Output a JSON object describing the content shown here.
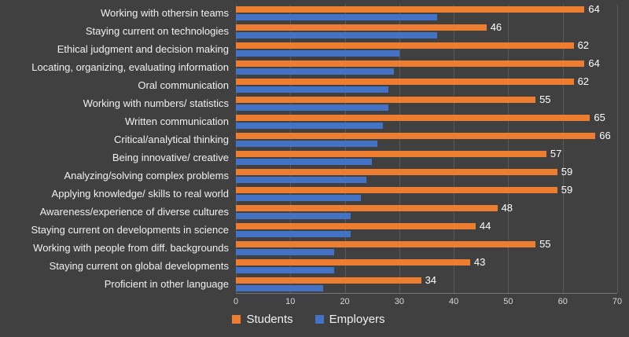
{
  "chart_data": {
    "type": "bar",
    "orientation": "horizontal",
    "title": "",
    "xlabel": "",
    "ylabel": "",
    "xlim": [
      0,
      70
    ],
    "x_ticks": [
      0,
      10,
      20,
      30,
      40,
      50,
      60,
      70
    ],
    "grid": true,
    "legend_position": "bottom",
    "background_color": "#404040",
    "gridline_color": "#5a5a5a",
    "axis_line_color": "#757575",
    "text_color": "#f1f1f1",
    "data_label_color": "#ffffff",
    "categories": [
      "Working with othersin teams",
      "Staying current on technologies",
      "Ethical judgment and decision making",
      "Locating, organizing, evaluating information",
      "Oral communication",
      "Working with numbers/ statistics",
      "Written communication",
      "Critical/analytical thinking",
      "Being innovative/ creative",
      "Analyzing/solving complex problems",
      "Applying knowledge/ skills to real world",
      "Awareness/experience of diverse cultures",
      "Staying current on developments in science",
      "Working with people from diff. backgrounds",
      "Staying current on global developments",
      "Proficient in other language"
    ],
    "series": [
      {
        "name": "Students",
        "color": "#ED7D31",
        "data_labels": true,
        "values": [
          64,
          46,
          62,
          64,
          62,
          55,
          65,
          66,
          57,
          59,
          59,
          48,
          44,
          55,
          43,
          34
        ]
      },
      {
        "name": "Employers",
        "color": "#4472C4",
        "data_labels": false,
        "values": [
          37,
          37,
          30,
          29,
          28,
          28,
          27,
          26,
          25,
          24,
          23,
          21,
          21,
          18,
          18,
          16
        ]
      }
    ]
  }
}
